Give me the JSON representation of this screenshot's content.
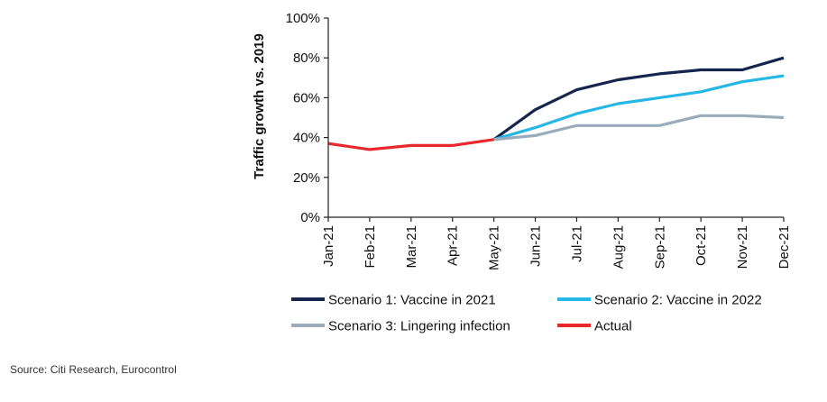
{
  "chart_data": {
    "type": "line",
    "ylabel": "Traffic growth vs. 2019",
    "xlabel": "",
    "title": "",
    "ylim": [
      0,
      100
    ],
    "y_ticks": [
      "0%",
      "20%",
      "40%",
      "60%",
      "80%",
      "100%"
    ],
    "y_tick_values": [
      0,
      20,
      40,
      60,
      80,
      100
    ],
    "categories": [
      "Jan-21",
      "Feb-21",
      "Mar-21",
      "Apr-21",
      "May-21",
      "Jun-21",
      "Jul-21",
      "Aug-21",
      "Sep-21",
      "Oct-21",
      "Nov-21",
      "Dec-21"
    ],
    "grid": false,
    "legend_position": "bottom",
    "series": [
      {
        "name": "Scenario 1: Vaccine in 2021",
        "color": "#14264d",
        "values": [
          null,
          null,
          null,
          null,
          39,
          54,
          64,
          69,
          72,
          74,
          74,
          80
        ]
      },
      {
        "name": "Scenario 2: Vaccine in 2022",
        "color": "#27b7e6",
        "values": [
          null,
          null,
          null,
          null,
          39,
          45,
          52,
          57,
          60,
          63,
          68,
          71
        ]
      },
      {
        "name": "Scenario 3: Lingering infection",
        "color": "#9aabbc",
        "values": [
          null,
          null,
          null,
          null,
          39,
          41,
          46,
          46,
          46,
          51,
          51,
          50
        ]
      },
      {
        "name": "Actual",
        "color": "#e8282d",
        "values": [
          37,
          34,
          36,
          36,
          39,
          null,
          null,
          null,
          null,
          null,
          null,
          null
        ]
      }
    ]
  },
  "footer": {
    "source": "Source: Citi Research, Eurocontrol"
  }
}
